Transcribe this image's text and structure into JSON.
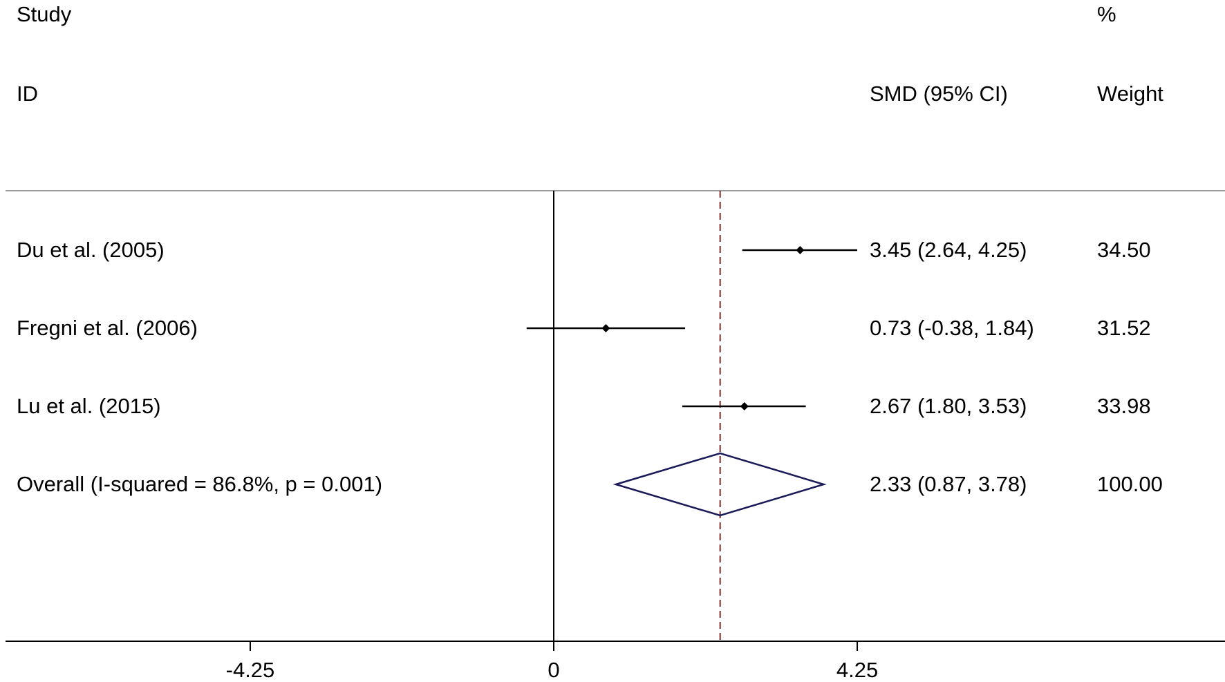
{
  "chart_data": {
    "type": "forest",
    "headers": {
      "study_line1": "Study",
      "study_line2": "ID",
      "effect_line2": "SMD (95% CI)",
      "weight_line1": "%",
      "weight_line2": "Weight"
    },
    "studies": [
      {
        "label": "Du et al. (2005)",
        "smd": 3.45,
        "lo": 2.64,
        "hi": 4.25,
        "effect_text": "3.45 (2.64, 4.25)",
        "weight": 34.5,
        "weight_text": "34.50"
      },
      {
        "label": "Fregni et al. (2006)",
        "smd": 0.73,
        "lo": -0.38,
        "hi": 1.84,
        "effect_text": "0.73 (-0.38, 1.84)",
        "weight": 31.52,
        "weight_text": "31.52"
      },
      {
        "label": "Lu et al. (2015)",
        "smd": 2.67,
        "lo": 1.8,
        "hi": 3.53,
        "effect_text": "2.67 (1.80, 3.53)",
        "weight": 33.98,
        "weight_text": "33.98"
      }
    ],
    "overall": {
      "label": "Overall  (I-squared = 86.8%, p = 0.001)",
      "smd": 2.33,
      "lo": 0.87,
      "hi": 3.78,
      "effect_text": "2.33 (0.87, 3.78)",
      "weight_text": "100.00"
    },
    "x_ticks": [
      -4.25,
      0,
      4.25
    ],
    "x_tick_labels": [
      "-4.25",
      "0",
      "4.25"
    ],
    "null_line": 0,
    "xlim": [
      -7.6,
      9.1
    ],
    "colors": {
      "diamond": "#1a1a5a",
      "overall_line": "#7a2a2a",
      "ink": "#000000",
      "separator": "#9a9a9a"
    }
  }
}
